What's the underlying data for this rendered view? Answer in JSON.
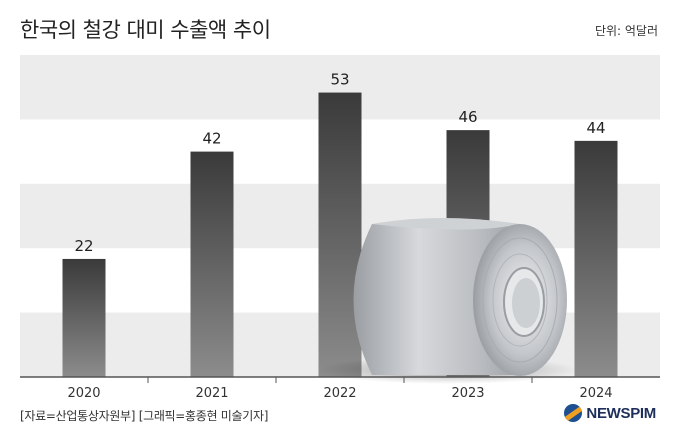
{
  "header": {
    "title": "한국의 철강 대미 수출액 추이",
    "unit": "단위: 억달러"
  },
  "footer": {
    "source": "[자료=산업통상자원부] [그래픽=홍종현 미술기자]",
    "logo_text": "NEWSPIM"
  },
  "colors": {
    "band": "#ececec",
    "bar_top": "#3a3a3a",
    "bar_bottom": "#8c8c8c",
    "axis": "#555555",
    "logo_blue": "#1d4f91",
    "logo_orange": "#f0a020"
  },
  "chart_data": {
    "type": "bar",
    "title": "한국의 철강 대미 수출액 추이",
    "unit": "단위: 억달러",
    "categories": [
      "2020",
      "2021",
      "2022",
      "2023",
      "2024"
    ],
    "values": [
      22,
      42,
      53,
      46,
      44
    ],
    "ylim": [
      0,
      60
    ],
    "grid": "alternating horizontal bands",
    "legend": "none"
  }
}
